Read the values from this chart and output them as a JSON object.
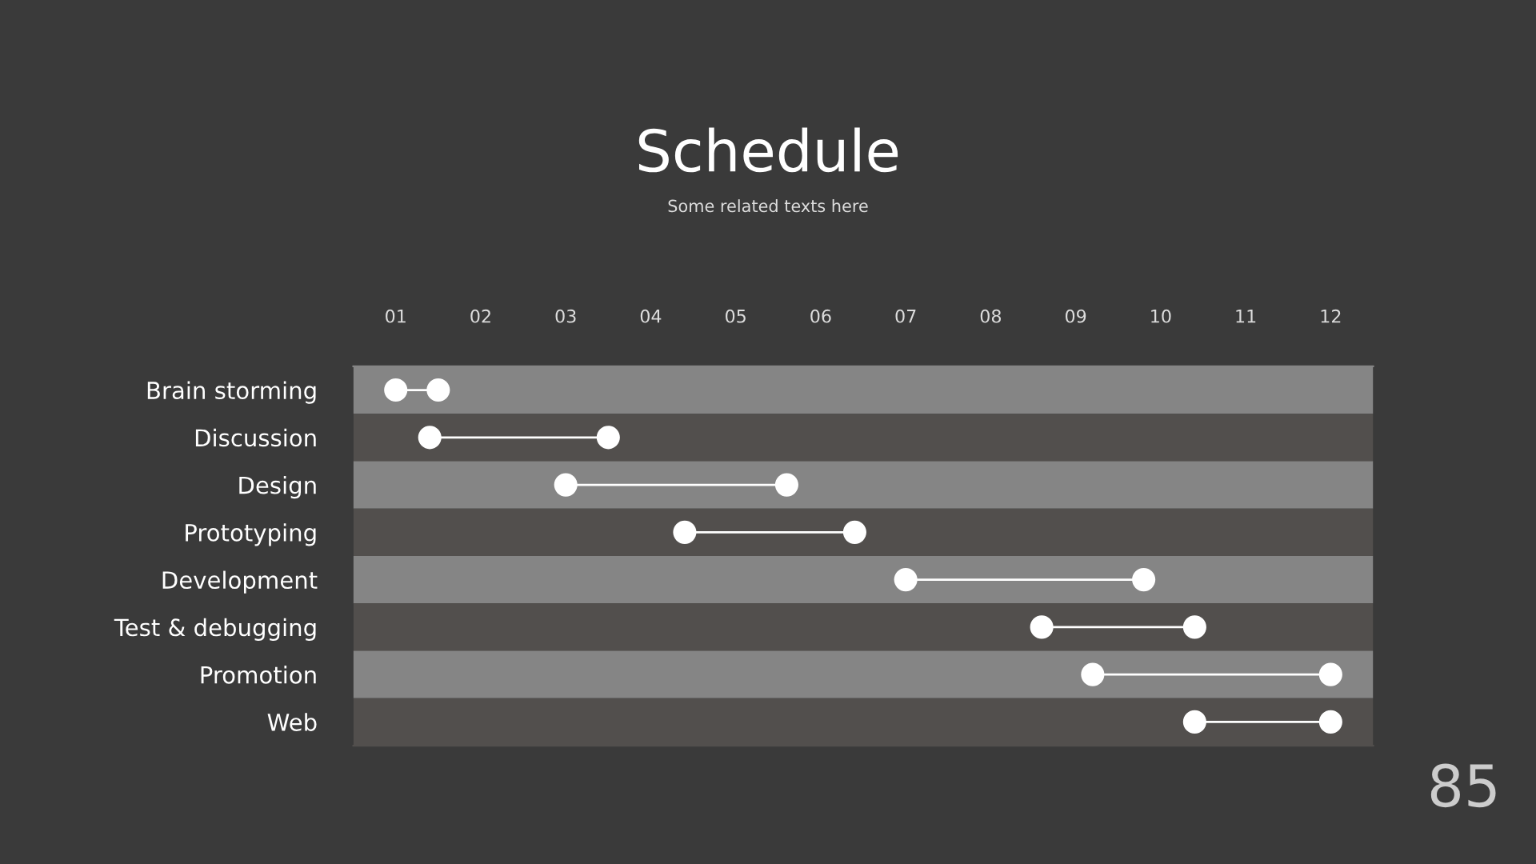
{
  "chart_data": {
    "type": "scatter",
    "orientation": "horizontal",
    "title": "Schedule",
    "subtitle": "Some related texts here",
    "categories": [
      "Brain storming",
      "Discussion",
      "Design",
      "Prototyping",
      "Development",
      "Test & debugging",
      "Promotion",
      "Web"
    ],
    "series": [
      {
        "color": "#ffffff",
        "values": [
          1.0,
          1.4,
          3.0,
          4.4,
          7.0,
          8.6,
          9.2,
          10.4
        ]
      },
      {
        "color": "#ffffff",
        "values": [
          1.5,
          3.5,
          5.6,
          6.4,
          9.8,
          10.4,
          12.0,
          12.0
        ]
      }
    ],
    "marker": "circle",
    "xlim": [
      0.5,
      12.5
    ],
    "xticks": [
      {
        "value": 1,
        "label": "01"
      },
      {
        "value": 2,
        "label": "02"
      },
      {
        "value": 3,
        "label": "03"
      },
      {
        "value": 4,
        "label": "04"
      },
      {
        "value": 5,
        "label": "05"
      },
      {
        "value": 6,
        "label": "06"
      },
      {
        "value": 7,
        "label": "07"
      },
      {
        "value": 8,
        "label": "08"
      },
      {
        "value": 9,
        "label": "09"
      },
      {
        "value": 10,
        "label": "10"
      },
      {
        "value": 11,
        "label": "11"
      },
      {
        "value": 12,
        "label": "12"
      }
    ],
    "annotations": [
      "85"
    ]
  }
}
